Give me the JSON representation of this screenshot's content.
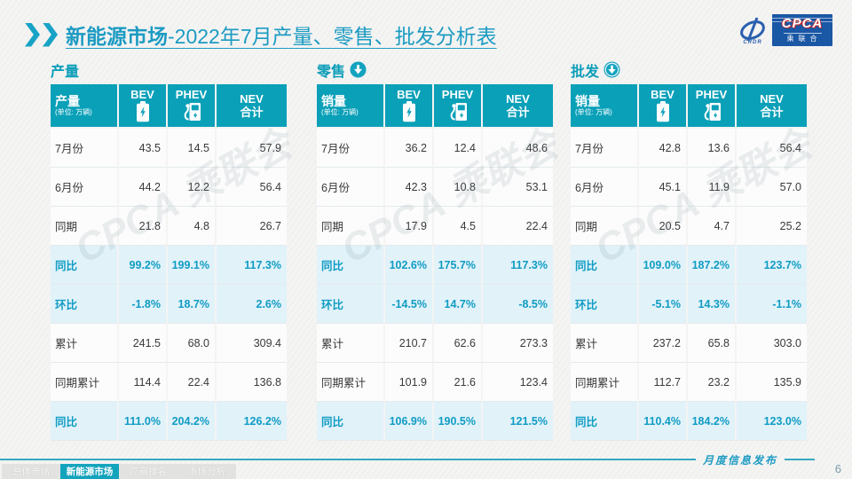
{
  "title": {
    "highlight": "新能源市场",
    "rest": "-2022年7月产量、零售、批发分析表"
  },
  "logo": {
    "crdr": "CRDR",
    "cpca": "CPCA",
    "association": "乘联合"
  },
  "watermark": "CPCA 乘联会",
  "columns": {
    "bev": "BEV",
    "phev": "PHEV",
    "nev_line1": "NEV",
    "nev_line2": "合计"
  },
  "unit_label": "(单位: 万辆)",
  "row_labels": [
    "7月份",
    "6月份",
    "同期",
    "同比",
    "环比",
    "累计",
    "同期累计",
    "同比"
  ],
  "percent_row_indexes": [
    3,
    4,
    7
  ],
  "tables": [
    {
      "id": "production",
      "section": "产量",
      "icon": "none",
      "measure_label": "产量",
      "rows": [
        [
          "43.5",
          "14.5",
          "57.9"
        ],
        [
          "44.2",
          "12.2",
          "56.4"
        ],
        [
          "21.8",
          "4.8",
          "26.7"
        ],
        [
          "99.2%",
          "199.1%",
          "117.3%"
        ],
        [
          "-1.8%",
          "18.7%",
          "2.6%"
        ],
        [
          "241.5",
          "68.0",
          "309.4"
        ],
        [
          "114.4",
          "22.4",
          "136.8"
        ],
        [
          "111.0%",
          "204.2%",
          "126.2%"
        ]
      ]
    },
    {
      "id": "retail",
      "section": "零售",
      "icon": "circle-down-arrow",
      "measure_label": "销量",
      "rows": [
        [
          "36.2",
          "12.4",
          "48.6"
        ],
        [
          "42.3",
          "10.8",
          "53.1"
        ],
        [
          "17.9",
          "4.5",
          "22.4"
        ],
        [
          "102.6%",
          "175.7%",
          "117.3%"
        ],
        [
          "-14.5%",
          "14.7%",
          "-8.5%"
        ],
        [
          "210.7",
          "62.6",
          "273.3"
        ],
        [
          "101.9",
          "21.6",
          "123.4"
        ],
        [
          "106.9%",
          "190.5%",
          "121.5%"
        ]
      ]
    },
    {
      "id": "wholesale",
      "section": "批发",
      "icon": "circle-down-arrow-ring",
      "measure_label": "销量",
      "rows": [
        [
          "42.8",
          "13.6",
          "56.4"
        ],
        [
          "45.1",
          "11.9",
          "57.0"
        ],
        [
          "20.5",
          "4.7",
          "25.2"
        ],
        [
          "109.0%",
          "187.2%",
          "123.7%"
        ],
        [
          "-5.1%",
          "14.3%",
          "-1.1%"
        ],
        [
          "237.2",
          "65.8",
          "303.0"
        ],
        [
          "112.7",
          "23.2",
          "135.9"
        ],
        [
          "110.4%",
          "184.2%",
          "123.0%"
        ]
      ]
    }
  ],
  "footer": {
    "note": "月度信息发布",
    "page": "6"
  },
  "tabs": [
    {
      "label": "总体市场",
      "active": false
    },
    {
      "label": "新能源市场",
      "active": true
    },
    {
      "label": "厂商排名",
      "active": false
    },
    {
      "label": "市场分析",
      "active": false
    }
  ],
  "colors": {
    "header_teal": "#0aa0b8",
    "accent_text": "#109cc4",
    "percent_row_bg": "#e1f2f9",
    "title_teal": "#1c9bc2",
    "logo_blue": "#1a57a5",
    "cpca_red": "#c62828",
    "active_tab": "#14a3bd"
  }
}
